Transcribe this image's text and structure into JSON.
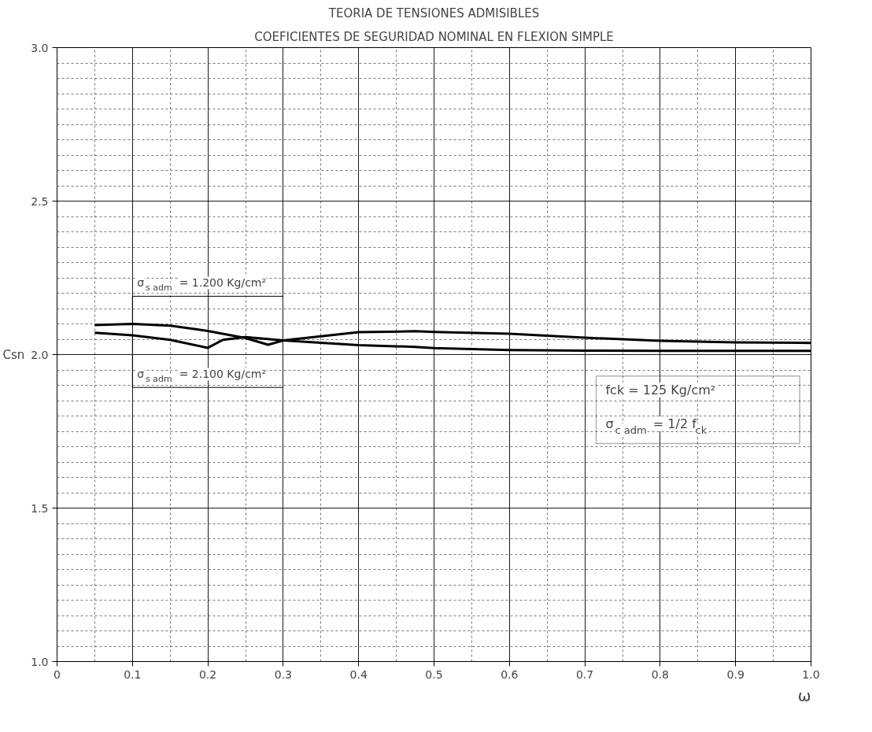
{
  "chart_data": {
    "type": "line",
    "title": "TEORIA DE TENSIONES ADMISIBLES",
    "subtitle": "COEFICIENTES DE SEGURIDAD NOMINAL EN FLEXION SIMPLE",
    "xlabel": "ω",
    "ylabel": "Csn",
    "x": [
      0.05,
      0.1,
      0.15,
      0.2,
      0.25,
      0.28,
      0.3,
      0.4,
      0.475,
      0.5,
      0.6,
      0.7,
      0.8,
      0.9,
      1.0
    ],
    "series": [
      {
        "name": "σ$_{s adm}$ = 1.200 Kg/cm²",
        "color": "#000000",
        "values": [
          2.096,
          2.1,
          2.094,
          2.077,
          2.054,
          2.032,
          2.046,
          2.073,
          2.076,
          2.074,
          2.068,
          2.055,
          2.045,
          2.04,
          2.038
        ]
      },
      {
        "name": "σ$_{s adm}$ = 2.100 Kg/cm²",
        "color": "#000000",
        "x": [
          0.05,
          0.1,
          0.15,
          0.2,
          0.22,
          0.25,
          0.3,
          0.4,
          0.475,
          0.5,
          0.6,
          0.7,
          0.8,
          1.0
        ],
        "values": [
          2.071,
          2.063,
          2.048,
          2.022,
          2.048,
          2.057,
          2.046,
          2.031,
          2.025,
          2.021,
          2.015,
          2.013,
          2.012,
          2.012
        ]
      }
    ],
    "annotations": [
      "fck = 125 Kg/cm²",
      "σ$_{c adm}$ = 1/2 f$_{ck}$"
    ],
    "xlim": [
      0,
      1.0
    ],
    "xticks": [
      0,
      0.1,
      0.2,
      0.3,
      0.4,
      0.5,
      0.6,
      0.7,
      0.8,
      0.9,
      {
        "value": 1,
        "label": "1.0"
      }
    ],
    "ylim": [
      1.0,
      3.0
    ],
    "yticks": [
      {
        "value": 1,
        "label": "1.0"
      },
      1.5,
      {
        "value": 2,
        "label": "2.0"
      },
      2.5,
      {
        "value": 3,
        "label": "3.0"
      }
    ],
    "grid": true,
    "marker": "none",
    "line_style": "solid"
  }
}
